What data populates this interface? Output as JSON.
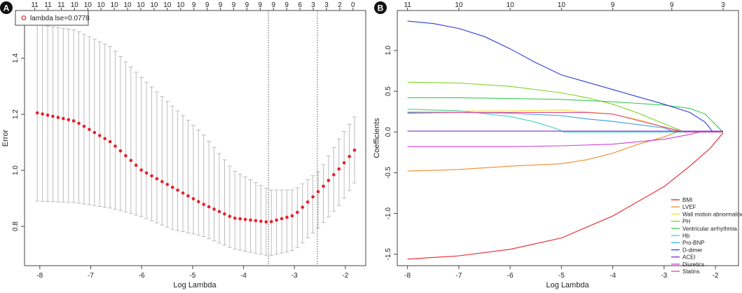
{
  "chart_data": [
    {
      "panel": "A",
      "type": "scatter",
      "xlabel": "Log Lambda",
      "ylabel": "Error",
      "xlim": [
        -8.3,
        -1.6
      ],
      "ylim": [
        0.66,
        1.57
      ],
      "xticks": [
        -8,
        -7,
        -6,
        -5,
        -4,
        -3,
        -2
      ],
      "yticks": [
        0.8,
        1.0,
        1.2,
        1.4
      ],
      "legend": "lambda lse=0.0778",
      "legend_position": "top-left",
      "top_axis_labels": [
        "11",
        "11",
        "11",
        "10",
        "10",
        "10",
        "10",
        "10",
        "10",
        "10",
        "10",
        "10",
        "9",
        "9",
        "9",
        "9",
        "9",
        "9",
        "9",
        "9",
        "6",
        "3",
        "3",
        "2",
        "0"
      ],
      "top_axis_range": [
        -8.1,
        -1.85
      ],
      "vlines": [
        -3.51,
        -2.55
      ],
      "x_start": -8.05,
      "x_end": -1.82,
      "n_points": 62,
      "series": [
        {
          "name": "mean",
          "points": [
            [
              -8.05,
              1.205
            ],
            [
              -7.3,
              1.175
            ],
            [
              -6.6,
              1.1
            ],
            [
              -6.0,
              1.0
            ],
            [
              -5.4,
              0.94
            ],
            [
              -4.8,
              0.88
            ],
            [
              -4.2,
              0.83
            ],
            [
              -3.5,
              0.815
            ],
            [
              -3.0,
              0.84
            ],
            [
              -2.5,
              0.93
            ],
            [
              -2.1,
              1.01
            ],
            [
              -1.82,
              1.072
            ]
          ]
        },
        {
          "name": "upper",
          "points": [
            [
              -8.05,
              1.52
            ],
            [
              -7.3,
              1.5
            ],
            [
              -6.6,
              1.44
            ],
            [
              -6.0,
              1.33
            ],
            [
              -5.4,
              1.23
            ],
            [
              -4.8,
              1.13
            ],
            [
              -4.2,
              1.0
            ],
            [
              -3.5,
              0.93
            ],
            [
              -3.0,
              0.93
            ],
            [
              -2.5,
              1.0
            ],
            [
              -2.1,
              1.12
            ],
            [
              -1.82,
              1.19
            ]
          ]
        },
        {
          "name": "lower",
          "points": [
            [
              -8.05,
              0.89
            ],
            [
              -7.3,
              0.885
            ],
            [
              -6.6,
              0.865
            ],
            [
              -6.0,
              0.835
            ],
            [
              -5.4,
              0.79
            ],
            [
              -4.8,
              0.765
            ],
            [
              -4.2,
              0.72
            ],
            [
              -3.5,
              0.695
            ],
            [
              -3.0,
              0.715
            ],
            [
              -2.5,
              0.8
            ],
            [
              -2.1,
              0.88
            ],
            [
              -1.82,
              0.955
            ]
          ]
        }
      ]
    },
    {
      "panel": "B",
      "type": "line",
      "xlabel": "Log Lambda",
      "ylabel": "Coefficients",
      "xlim": [
        -8.2,
        -1.55
      ],
      "ylim": [
        -1.64,
        1.49
      ],
      "xticks": [
        -8,
        -7,
        -6,
        -5,
        -4,
        -3,
        -2
      ],
      "yticks": [
        -1.5,
        -1.0,
        -0.5,
        0.0,
        0.5,
        1.0
      ],
      "top_axis_labels": [
        "11",
        "10",
        "10",
        "10",
        "9",
        "9",
        "3"
      ],
      "top_axis_values": [
        -8.0,
        -7.0,
        -6.0,
        -5.0,
        -4.0,
        -2.85,
        -1.85
      ],
      "legend_position": "bottom-right",
      "series": [
        {
          "name": "BMI",
          "color": "#e8202a",
          "points": [
            [
              -8.0,
              -1.56
            ],
            [
              -7.0,
              -1.52
            ],
            [
              -6.0,
              -1.44
            ],
            [
              -5.0,
              -1.3
            ],
            [
              -4.0,
              -1.03
            ],
            [
              -3.0,
              -0.67
            ],
            [
              -2.5,
              -0.42
            ],
            [
              -2.1,
              -0.2
            ],
            [
              -1.85,
              -0.01
            ]
          ]
        },
        {
          "name": "LVEF",
          "color": "#f28a2b",
          "points": [
            [
              -8.0,
              -0.48
            ],
            [
              -7.0,
              -0.46
            ],
            [
              -6.0,
              -0.42
            ],
            [
              -5.0,
              -0.39
            ],
            [
              -4.5,
              -0.34
            ],
            [
              -4.0,
              -0.26
            ],
            [
              -3.5,
              -0.15
            ],
            [
              -3.0,
              -0.06
            ],
            [
              -2.75,
              0.0
            ],
            [
              -1.85,
              0.0
            ]
          ]
        },
        {
          "name": "Wall motion abnormalities",
          "color": "#f3e034",
          "points": [
            [
              -8.0,
              0.25
            ],
            [
              -7.0,
              0.255
            ],
            [
              -6.0,
              0.26
            ],
            [
              -5.0,
              0.27
            ],
            [
              -4.0,
              0.22
            ],
            [
              -3.5,
              0.15
            ],
            [
              -3.0,
              0.06
            ],
            [
              -2.7,
              0.0
            ],
            [
              -1.85,
              0.0
            ]
          ]
        },
        {
          "name": "PH",
          "color": "#7fd321",
          "points": [
            [
              -8.0,
              0.61
            ],
            [
              -7.0,
              0.6
            ],
            [
              -6.0,
              0.56
            ],
            [
              -5.0,
              0.48
            ],
            [
              -4.5,
              0.42
            ],
            [
              -4.0,
              0.34
            ],
            [
              -3.5,
              0.23
            ],
            [
              -3.0,
              0.1
            ],
            [
              -2.6,
              0.0
            ],
            [
              -1.85,
              0.0
            ]
          ]
        },
        {
          "name": "Ventricular arrhythmia",
          "color": "#39cc52",
          "points": [
            [
              -8.0,
              0.42
            ],
            [
              -7.0,
              0.42
            ],
            [
              -6.0,
              0.41
            ],
            [
              -5.0,
              0.4
            ],
            [
              -4.0,
              0.37
            ],
            [
              -3.0,
              0.33
            ],
            [
              -2.5,
              0.29
            ],
            [
              -2.2,
              0.22
            ],
            [
              -1.95,
              0.06
            ],
            [
              -1.85,
              0.0
            ]
          ]
        },
        {
          "name": "Hb",
          "color": "#3cd3c4",
          "points": [
            [
              -8.0,
              0.28
            ],
            [
              -7.0,
              0.26
            ],
            [
              -6.0,
              0.19
            ],
            [
              -5.5,
              0.12
            ],
            [
              -5.1,
              0.04
            ],
            [
              -4.95,
              0.0
            ],
            [
              -1.85,
              0.0
            ]
          ]
        },
        {
          "name": "Pro-BNP",
          "color": "#3a9fe0",
          "points": [
            [
              -8.0,
              0.24
            ],
            [
              -7.0,
              0.24
            ],
            [
              -6.0,
              0.23
            ],
            [
              -5.0,
              0.2
            ],
            [
              -4.5,
              0.16
            ],
            [
              -4.0,
              0.13
            ],
            [
              -3.0,
              0.05
            ],
            [
              -2.8,
              0.0
            ],
            [
              -1.85,
              0.0
            ]
          ]
        },
        {
          "name": "D-dimer",
          "color": "#2f3fd0",
          "points": [
            [
              -8.0,
              1.36
            ],
            [
              -7.5,
              1.33
            ],
            [
              -7.0,
              1.27
            ],
            [
              -6.5,
              1.17
            ],
            [
              -6.0,
              1.02
            ],
            [
              -5.5,
              0.85
            ],
            [
              -5.0,
              0.7
            ],
            [
              -4.5,
              0.61
            ],
            [
              -4.0,
              0.52
            ],
            [
              -3.5,
              0.43
            ],
            [
              -3.0,
              0.34
            ],
            [
              -2.5,
              0.24
            ],
            [
              -2.2,
              0.12
            ],
            [
              -2.05,
              0.0
            ],
            [
              -1.85,
              0.0
            ]
          ]
        },
        {
          "name": "ACEI",
          "color": "#7a2fd6",
          "points": [
            [
              -8.0,
              0.01
            ],
            [
              -1.85,
              0.01
            ]
          ]
        },
        {
          "name": "Diuretics",
          "color": "#d43fd8",
          "points": [
            [
              -8.0,
              -0.18
            ],
            [
              -7.0,
              -0.18
            ],
            [
              -6.0,
              -0.18
            ],
            [
              -5.0,
              -0.17
            ],
            [
              -4.0,
              -0.15
            ],
            [
              -3.0,
              -0.09
            ],
            [
              -2.5,
              -0.03
            ],
            [
              -2.3,
              0.0
            ],
            [
              -1.85,
              0.0
            ]
          ]
        },
        {
          "name": "Statins",
          "color": "#e3458e",
          "points": [
            [
              -8.0,
              0.23
            ],
            [
              -7.0,
              0.24
            ],
            [
              -6.0,
              0.24
            ],
            [
              -5.0,
              0.24
            ],
            [
              -4.5,
              0.24
            ],
            [
              -4.0,
              0.22
            ],
            [
              -3.5,
              0.14
            ],
            [
              -3.0,
              0.06
            ],
            [
              -2.6,
              0.0
            ],
            [
              -1.85,
              0.0
            ]
          ]
        }
      ]
    }
  ],
  "panel_labels": [
    "A",
    "B"
  ]
}
